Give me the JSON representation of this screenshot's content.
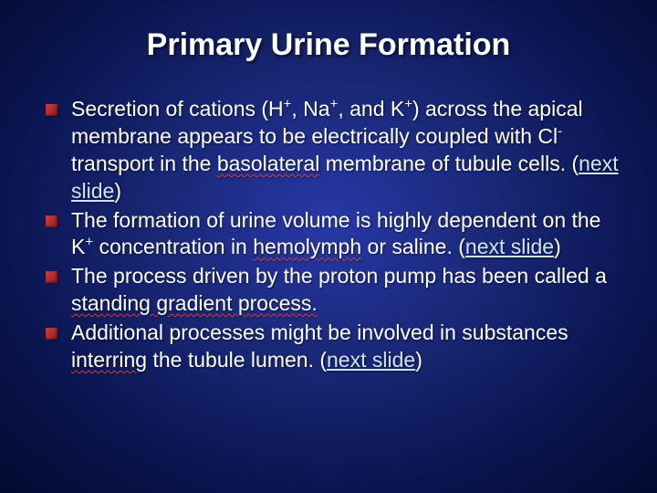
{
  "slide": {
    "type": "presentation-slide",
    "background": {
      "gradient_center": "#2838a8",
      "gradient_mid": "#1a2878",
      "gradient_outer": "#0a1550",
      "gradient_edge": "#040a30"
    },
    "title": {
      "text": "Primary Urine Formation",
      "fontsize": 34,
      "color": "#ffffff",
      "weight": "bold"
    },
    "bullet_style": {
      "marker_color_start": "#d04040",
      "marker_color_end": "#901818",
      "marker_size": 13
    },
    "body_fontsize": 23,
    "link_color": "#cfe3ff",
    "wavy_underline_color": "#d04040",
    "bullets": [
      {
        "segments": [
          {
            "t": "Secretion of cations (H"
          },
          {
            "t": "+",
            "sup": true
          },
          {
            "t": ", Na"
          },
          {
            "t": "+",
            "sup": true
          },
          {
            "t": ", and K"
          },
          {
            "t": "+",
            "sup": true
          },
          {
            "t": ") across the apical membrane appears to be electrically coupled with Cl"
          },
          {
            "t": "-",
            "sup": true
          },
          {
            "t": " transport in the "
          },
          {
            "t": "basolateral",
            "wavy": true
          },
          {
            "t": " membrane of tubule cells. ("
          },
          {
            "t": "next slide",
            "link": true
          },
          {
            "t": ")"
          }
        ]
      },
      {
        "segments": [
          {
            "t": "The formation of urine volume is highly dependent on the K"
          },
          {
            "t": "+",
            "sup": true
          },
          {
            "t": " concentration in "
          },
          {
            "t": "hemolymph",
            "wavy": true
          },
          {
            "t": " or saline. ("
          },
          {
            "t": "next slide",
            "link": true
          },
          {
            "t": ")"
          }
        ]
      },
      {
        "segments": [
          {
            "t": "The process driven by the proton pump has been called a "
          },
          {
            "t": "standing gradient process.",
            "wavy": true
          }
        ]
      },
      {
        "segments": [
          {
            "t": "Additional processes might be involved in substances "
          },
          {
            "t": "interring",
            "wavy": true
          },
          {
            "t": " the tubule lumen. ("
          },
          {
            "t": "next slide",
            "link": true
          },
          {
            "t": ")"
          }
        ]
      }
    ]
  }
}
